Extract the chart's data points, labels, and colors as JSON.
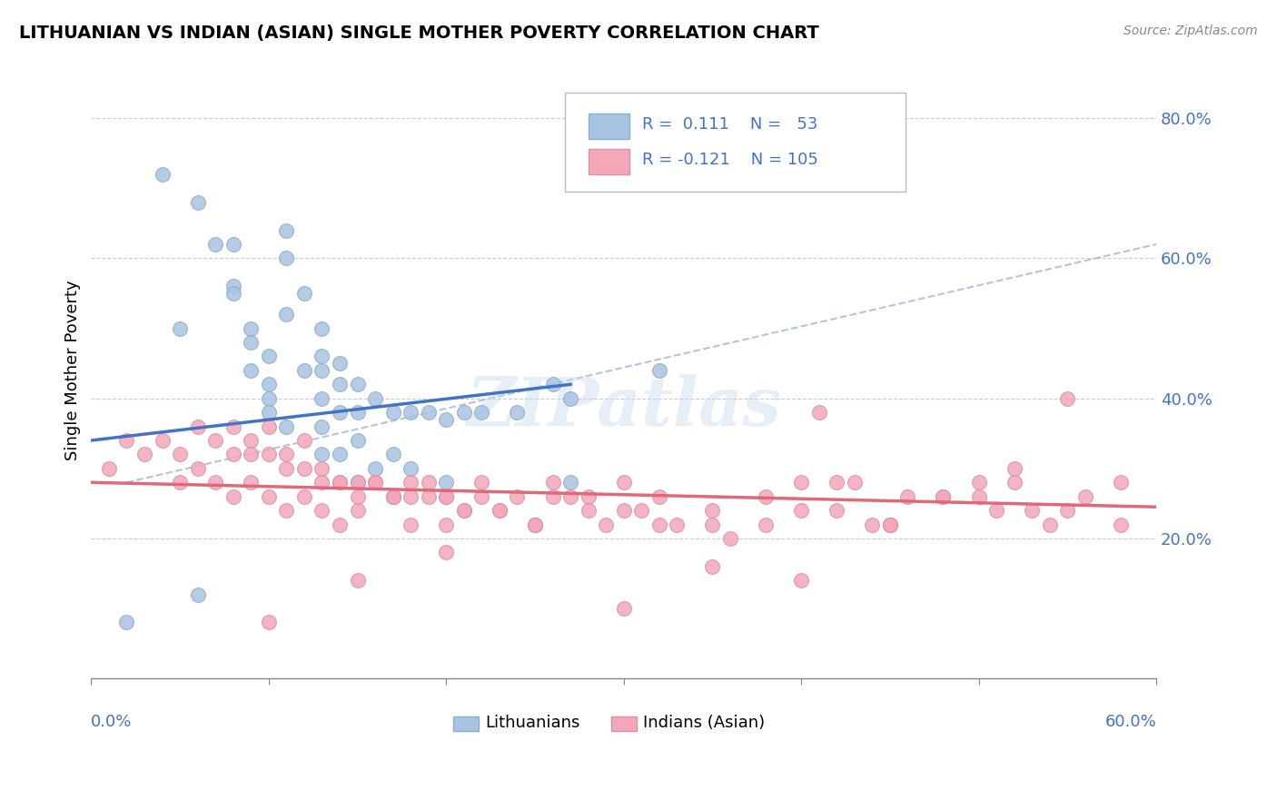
{
  "title": "LITHUANIAN VS INDIAN (ASIAN) SINGLE MOTHER POVERTY CORRELATION CHART",
  "source": "Source: ZipAtlas.com",
  "ylabel": "Single Mother Poverty",
  "ytick_labels": [
    "20.0%",
    "40.0%",
    "60.0%",
    "80.0%"
  ],
  "ytick_values": [
    0.2,
    0.4,
    0.6,
    0.8
  ],
  "xlim": [
    0.0,
    0.6
  ],
  "ylim": [
    0.0,
    0.88
  ],
  "blue_color": "#a8c4e0",
  "pink_color": "#f4a7b9",
  "blue_line_color": "#4472c4",
  "pink_line_color": "#e06878",
  "dashed_line_color": "#a0b8d0",
  "lith_scatter_x": [
    0.02,
    0.04,
    0.05,
    0.06,
    0.07,
    0.08,
    0.08,
    0.09,
    0.09,
    0.1,
    0.1,
    0.1,
    0.11,
    0.11,
    0.11,
    0.12,
    0.12,
    0.13,
    0.13,
    0.13,
    0.13,
    0.13,
    0.14,
    0.14,
    0.14,
    0.14,
    0.15,
    0.15,
    0.15,
    0.15,
    0.16,
    0.16,
    0.17,
    0.17,
    0.17,
    0.18,
    0.18,
    0.19,
    0.2,
    0.2,
    0.21,
    0.22,
    0.24,
    0.26,
    0.27,
    0.27,
    0.08,
    0.09,
    0.1,
    0.11,
    0.13,
    0.32,
    0.06
  ],
  "lith_scatter_y": [
    0.08,
    0.72,
    0.5,
    0.68,
    0.62,
    0.62,
    0.56,
    0.5,
    0.44,
    0.42,
    0.4,
    0.38,
    0.64,
    0.6,
    0.36,
    0.55,
    0.44,
    0.5,
    0.44,
    0.4,
    0.36,
    0.32,
    0.45,
    0.42,
    0.38,
    0.32,
    0.42,
    0.38,
    0.34,
    0.28,
    0.4,
    0.3,
    0.38,
    0.32,
    0.26,
    0.38,
    0.3,
    0.38,
    0.37,
    0.28,
    0.38,
    0.38,
    0.38,
    0.42,
    0.4,
    0.28,
    0.55,
    0.48,
    0.46,
    0.52,
    0.46,
    0.44,
    0.12
  ],
  "indian_scatter_x": [
    0.01,
    0.02,
    0.03,
    0.04,
    0.05,
    0.05,
    0.06,
    0.06,
    0.07,
    0.07,
    0.08,
    0.08,
    0.09,
    0.09,
    0.1,
    0.1,
    0.11,
    0.11,
    0.12,
    0.12,
    0.13,
    0.13,
    0.14,
    0.14,
    0.15,
    0.15,
    0.16,
    0.17,
    0.18,
    0.18,
    0.19,
    0.2,
    0.2,
    0.21,
    0.22,
    0.23,
    0.24,
    0.25,
    0.26,
    0.27,
    0.28,
    0.29,
    0.3,
    0.31,
    0.32,
    0.33,
    0.35,
    0.36,
    0.38,
    0.4,
    0.41,
    0.42,
    0.43,
    0.44,
    0.45,
    0.46,
    0.48,
    0.5,
    0.51,
    0.52,
    0.53,
    0.54,
    0.55,
    0.56,
    0.58,
    0.08,
    0.09,
    0.1,
    0.11,
    0.12,
    0.13,
    0.14,
    0.15,
    0.16,
    0.17,
    0.18,
    0.19,
    0.2,
    0.21,
    0.22,
    0.23,
    0.25,
    0.26,
    0.28,
    0.3,
    0.32,
    0.35,
    0.38,
    0.4,
    0.42,
    0.45,
    0.48,
    0.5,
    0.52,
    0.55,
    0.58,
    0.1,
    0.15,
    0.2,
    0.25,
    0.3,
    0.35,
    0.4,
    0.45
  ],
  "indian_scatter_y": [
    0.3,
    0.34,
    0.32,
    0.34,
    0.32,
    0.28,
    0.36,
    0.3,
    0.34,
    0.28,
    0.32,
    0.26,
    0.34,
    0.28,
    0.32,
    0.26,
    0.3,
    0.24,
    0.3,
    0.26,
    0.28,
    0.24,
    0.28,
    0.22,
    0.28,
    0.24,
    0.28,
    0.26,
    0.26,
    0.22,
    0.28,
    0.26,
    0.22,
    0.24,
    0.26,
    0.24,
    0.26,
    0.22,
    0.28,
    0.26,
    0.24,
    0.22,
    0.28,
    0.24,
    0.26,
    0.22,
    0.24,
    0.2,
    0.26,
    0.28,
    0.38,
    0.24,
    0.28,
    0.22,
    0.22,
    0.26,
    0.26,
    0.28,
    0.24,
    0.3,
    0.24,
    0.22,
    0.4,
    0.26,
    0.28,
    0.36,
    0.32,
    0.36,
    0.32,
    0.34,
    0.3,
    0.28,
    0.26,
    0.28,
    0.26,
    0.28,
    0.26,
    0.26,
    0.24,
    0.28,
    0.24,
    0.22,
    0.26,
    0.26,
    0.24,
    0.22,
    0.22,
    0.22,
    0.24,
    0.28,
    0.22,
    0.26,
    0.26,
    0.28,
    0.24,
    0.22,
    0.08,
    0.14,
    0.18,
    0.22,
    0.1,
    0.16,
    0.14,
    0.22
  ],
  "lith_trendline": [
    0.0,
    0.27,
    0.34,
    0.42
  ],
  "indian_trendline": [
    0.0,
    0.6,
    0.28,
    0.25
  ],
  "dashed_line": [
    0.0,
    0.6,
    0.0,
    0.64
  ]
}
